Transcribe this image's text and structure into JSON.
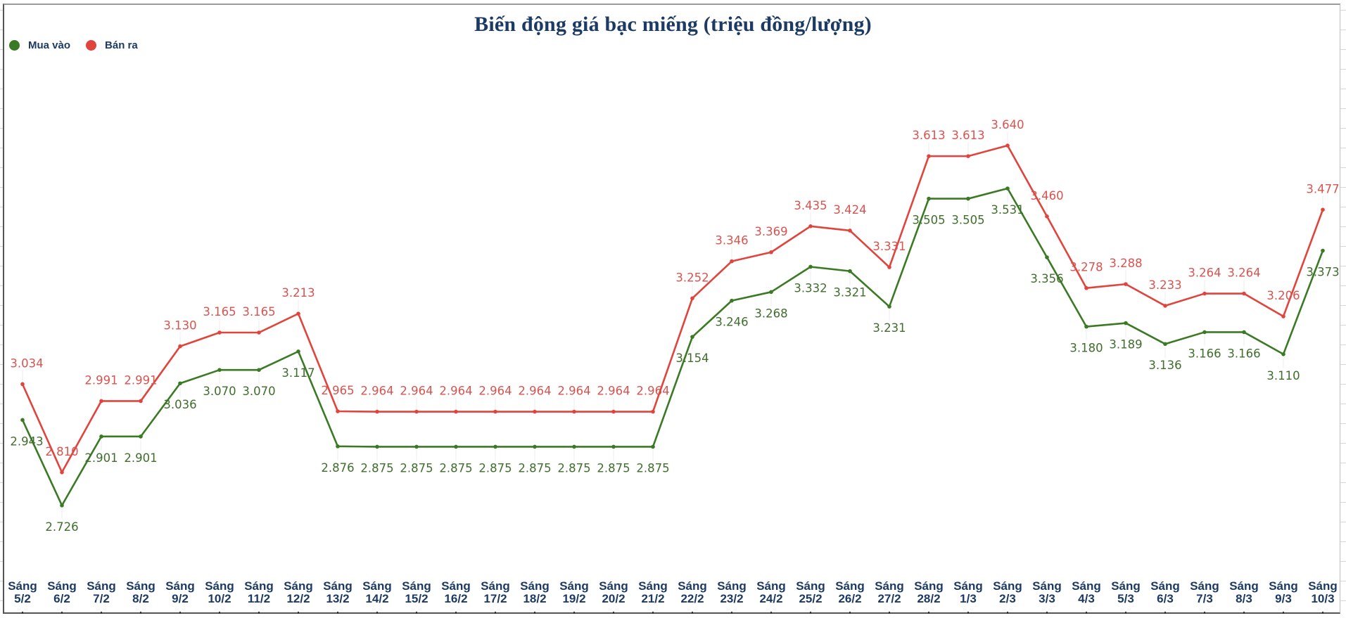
{
  "chart_data": {
    "type": "line",
    "title": "Biến động giá bạc miếng (triệu đồng/lượng)",
    "xlabel": "",
    "ylabel": "",
    "ylim": [
      2.6,
      3.7
    ],
    "grid": false,
    "legend_position": "top-left",
    "categories": [
      "Sáng 5/2",
      "Sáng 6/2",
      "Sáng 7/2",
      "Sáng 8/2",
      "Sáng 9/2",
      "Sáng 10/2",
      "Sáng 11/2",
      "Sáng 12/2",
      "Sáng 13/2",
      "Sáng 14/2",
      "Sáng 15/2",
      "Sáng 16/2",
      "Sáng 17/2",
      "Sáng 18/2",
      "Sáng 19/2",
      "Sáng 20/2",
      "Sáng 21/2",
      "Sáng 22/2",
      "Sáng 23/2",
      "Sáng 24/2",
      "Sáng 25/2",
      "Sáng 26/2",
      "Sáng 27/2",
      "Sáng 28/2",
      "Sáng 1/3",
      "Sáng 2/3",
      "Sáng 3/3",
      "Sáng 4/3",
      "Sáng 5/3",
      "Sáng 6/3",
      "Sáng 7/3",
      "Sáng 8/3",
      "Sáng 9/3",
      "Sáng 10/3"
    ],
    "series": [
      {
        "name": "Mua vào",
        "color": "#3b7a24",
        "label_color": "#3f6e2c",
        "values": [
          2.943,
          2.726,
          2.901,
          2.901,
          3.036,
          3.07,
          3.07,
          3.117,
          2.876,
          2.875,
          2.875,
          2.875,
          2.875,
          2.875,
          2.875,
          2.875,
          2.875,
          3.154,
          3.246,
          3.268,
          3.332,
          3.321,
          3.231,
          3.505,
          3.505,
          3.531,
          3.356,
          3.18,
          3.189,
          3.136,
          3.166,
          3.166,
          3.11,
          3.373
        ]
      },
      {
        "name": "Bán ra",
        "color": "#e0443c",
        "label_color": "#d9534f",
        "values": [
          3.034,
          2.81,
          2.991,
          2.991,
          3.13,
          3.165,
          3.165,
          3.213,
          2.965,
          2.964,
          2.964,
          2.964,
          2.964,
          2.964,
          2.964,
          2.964,
          2.964,
          3.252,
          3.346,
          3.369,
          3.435,
          3.424,
          3.331,
          3.613,
          3.613,
          3.64,
          3.46,
          3.278,
          3.288,
          3.233,
          3.264,
          3.264,
          3.206,
          3.477
        ]
      }
    ]
  },
  "legend": {
    "items": [
      {
        "label": "Mua vào",
        "color": "#3b7a24"
      },
      {
        "label": "Bán ra",
        "color": "#e0443c"
      }
    ]
  },
  "colors": {
    "title": "#1c3a63",
    "axis_label": "#1c3a63"
  }
}
